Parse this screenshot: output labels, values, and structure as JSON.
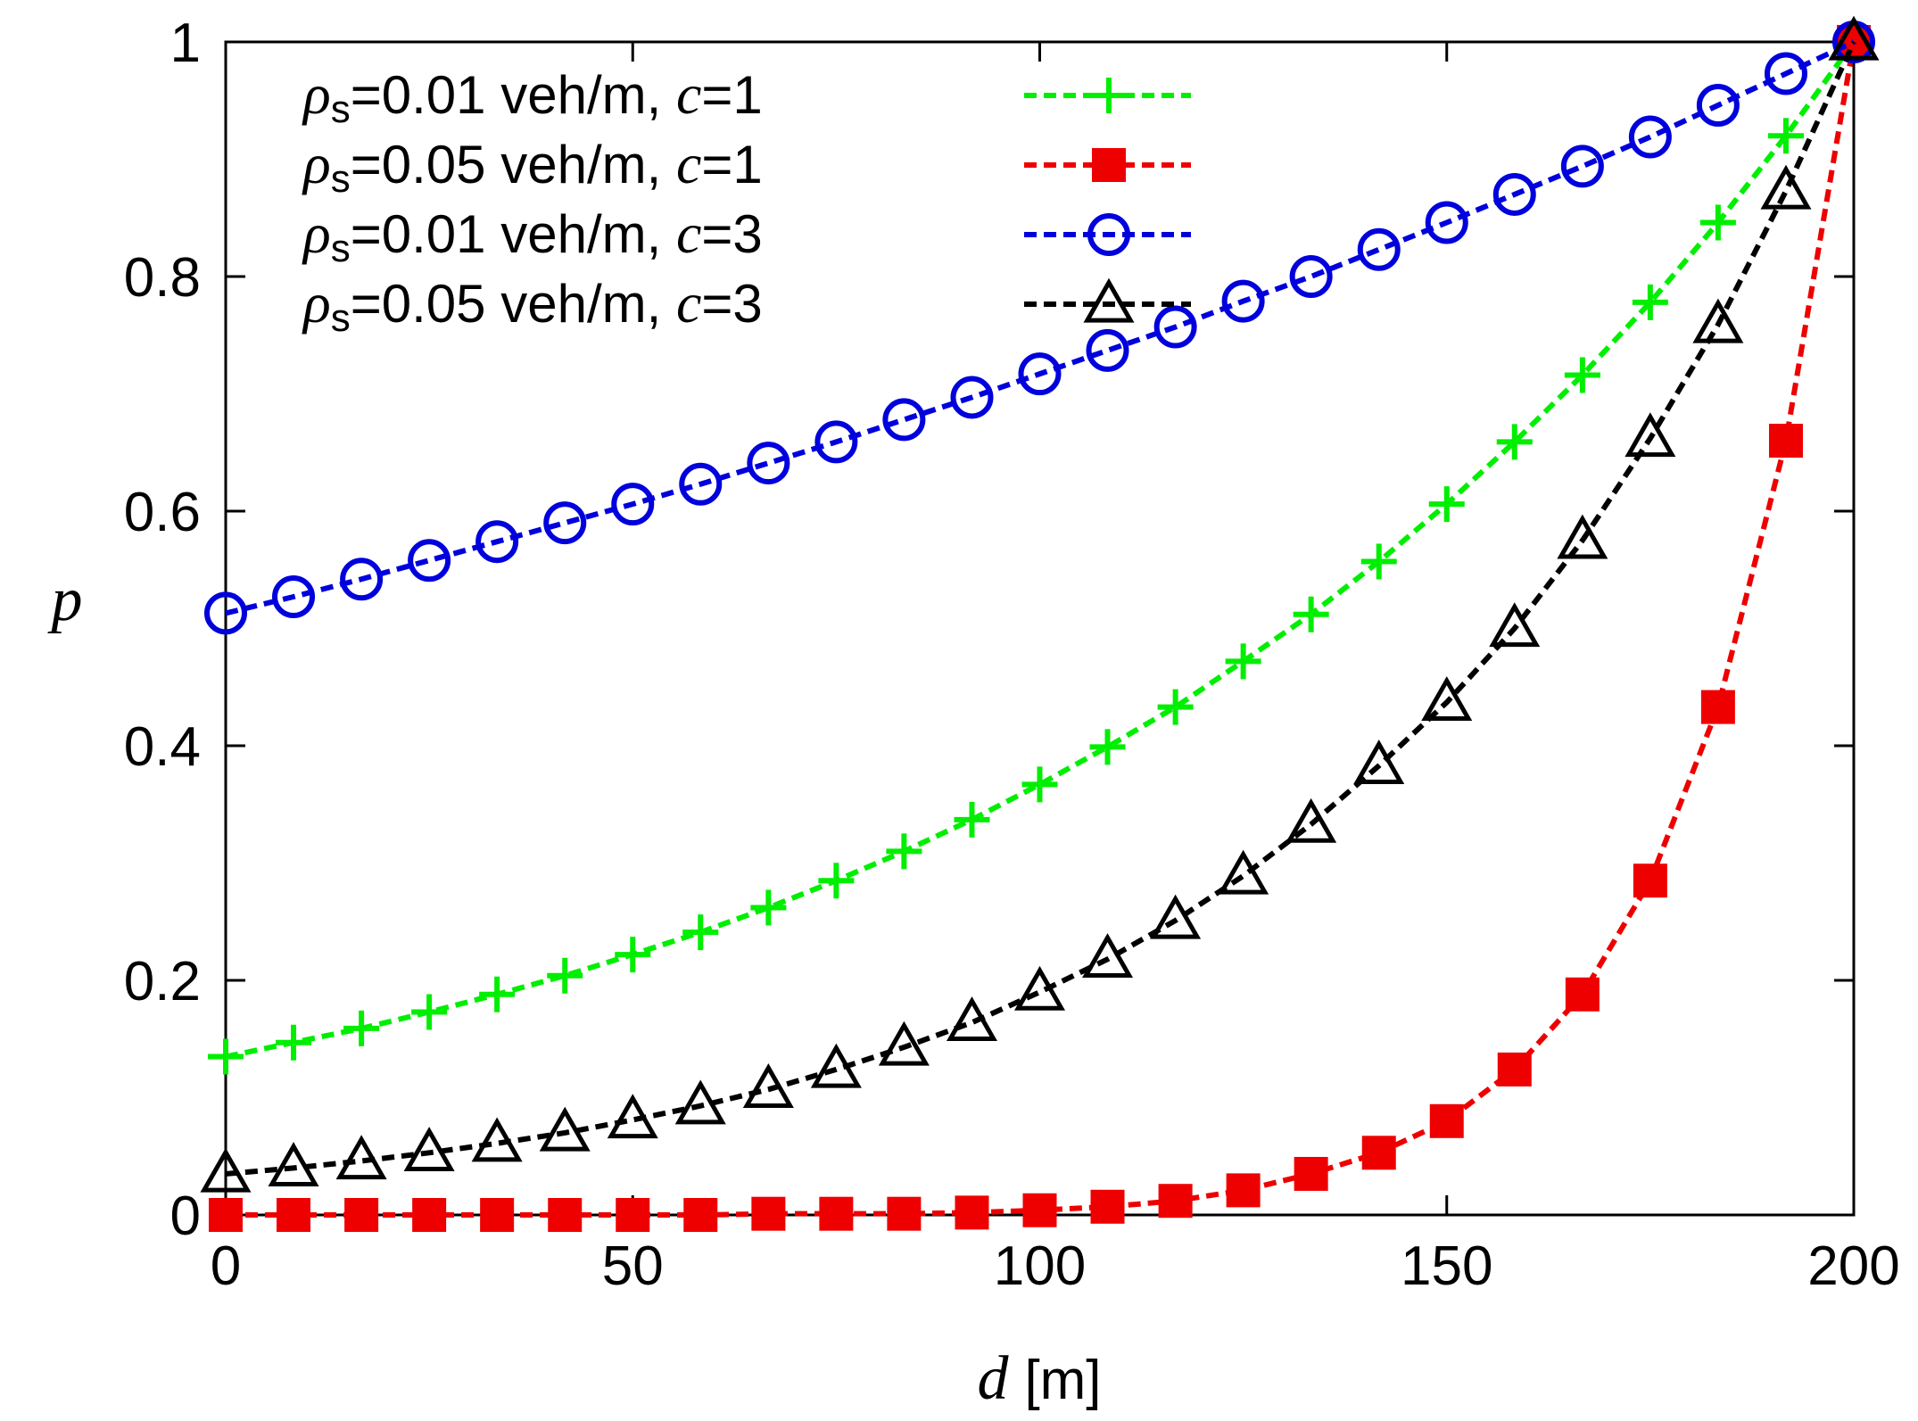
{
  "chart_data": {
    "type": "line",
    "title": "",
    "xlabel": "d",
    "xlabel_unit": "[m]",
    "ylabel": "p",
    "xlim": [
      0,
      200
    ],
    "ylim": [
      0,
      1
    ],
    "xticks": [
      0,
      50,
      100,
      150,
      200
    ],
    "yticks": [
      0,
      0.2,
      0.4,
      0.6,
      0.8,
      1
    ],
    "ytick_labels": [
      "0",
      "0.2",
      "0.4",
      "0.6",
      "0.8",
      "1"
    ],
    "grid": false,
    "legend_position": "top-left",
    "x": [
      0,
      8.33,
      16.67,
      25,
      33.33,
      41.67,
      50,
      58.33,
      66.67,
      75,
      83.33,
      91.67,
      100,
      108.33,
      116.67,
      125,
      133.33,
      141.67,
      150,
      158.33,
      166.67,
      175,
      183.33,
      191.67,
      200
    ],
    "series": [
      {
        "name": "ρs=0.01 veh/m, c=1",
        "legend": {
          "sym": "ρ",
          "sub": "s",
          "text": "=0.01 veh/m, ",
          "var": "c",
          "val": "=1"
        },
        "color": "#00ee00",
        "marker": "plus",
        "values": [
          0.135,
          0.147,
          0.159,
          0.173,
          0.188,
          0.204,
          0.222,
          0.241,
          0.262,
          0.285,
          0.31,
          0.337,
          0.367,
          0.399,
          0.433,
          0.472,
          0.512,
          0.557,
          0.606,
          0.659,
          0.716,
          0.778,
          0.846,
          0.92,
          1.0
        ]
      },
      {
        "name": "ρs=0.05 veh/m, c=1",
        "legend": {
          "sym": "ρ",
          "sub": "s",
          "text": "=0.05 veh/m, ",
          "var": "c",
          "val": "=1"
        },
        "color": "#ee0000",
        "marker": "filled-square",
        "values": [
          0.0,
          0.0,
          0.0,
          0.0,
          0.0,
          0.0,
          0.0,
          0.0,
          0.001,
          0.001,
          0.001,
          0.002,
          0.004,
          0.007,
          0.012,
          0.021,
          0.035,
          0.053,
          0.08,
          0.124,
          0.188,
          0.285,
          0.433,
          0.66,
          1.0
        ]
      },
      {
        "name": "ρs=0.01 veh/m, c=3",
        "legend": {
          "sym": "ρ",
          "sub": "s",
          "text": "=0.01 veh/m, ",
          "var": "c",
          "val": "=3"
        },
        "color": "#0000dd",
        "marker": "open-circle",
        "values": [
          0.513,
          0.527,
          0.542,
          0.558,
          0.574,
          0.59,
          0.606,
          0.623,
          0.641,
          0.659,
          0.678,
          0.697,
          0.717,
          0.737,
          0.757,
          0.779,
          0.8,
          0.823,
          0.846,
          0.87,
          0.894,
          0.919,
          0.946,
          0.973,
          1.0
        ]
      },
      {
        "name": "ρs=0.05 veh/m, c=3",
        "legend": {
          "sym": "ρ",
          "sub": "s",
          "text": "=0.05 veh/m, ",
          "var": "c",
          "val": "=3"
        },
        "color": "#000000",
        "marker": "open-triangle",
        "values": [
          0.035,
          0.04,
          0.046,
          0.053,
          0.061,
          0.07,
          0.081,
          0.093,
          0.107,
          0.124,
          0.143,
          0.164,
          0.19,
          0.218,
          0.251,
          0.289,
          0.333,
          0.383,
          0.437,
          0.5,
          0.575,
          0.662,
          0.759,
          0.873,
          1.0
        ]
      }
    ]
  }
}
